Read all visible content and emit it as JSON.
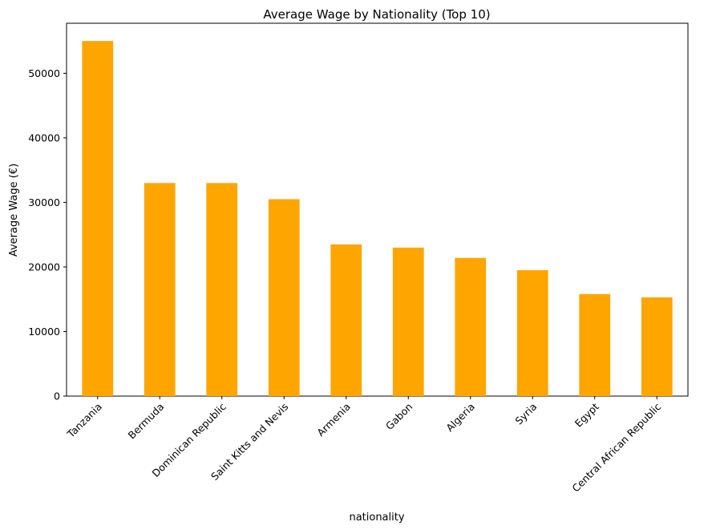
{
  "chart_data": {
    "type": "bar",
    "title": "Average Wage by Nationality (Top 10)",
    "xlabel": "nationality",
    "ylabel": "Average Wage (€)",
    "categories": [
      "Tanzania",
      "Bermuda",
      "Dominican Republic",
      "Saint Kitts and Nevis",
      "Armenia",
      "Gabon",
      "Algeria",
      "Syria",
      "Egypt",
      "Central African Republic"
    ],
    "values": [
      55000,
      33000,
      33000,
      30500,
      23500,
      23000,
      21400,
      19500,
      15800,
      15300
    ],
    "ylim": [
      0,
      57750
    ],
    "yticks": [
      0,
      10000,
      20000,
      30000,
      40000,
      50000
    ],
    "ytick_labels": [
      "0",
      "10000",
      "20000",
      "30000",
      "40000",
      "50000"
    ],
    "bar_color": "#ffa500",
    "grid": false,
    "legend": false
  }
}
